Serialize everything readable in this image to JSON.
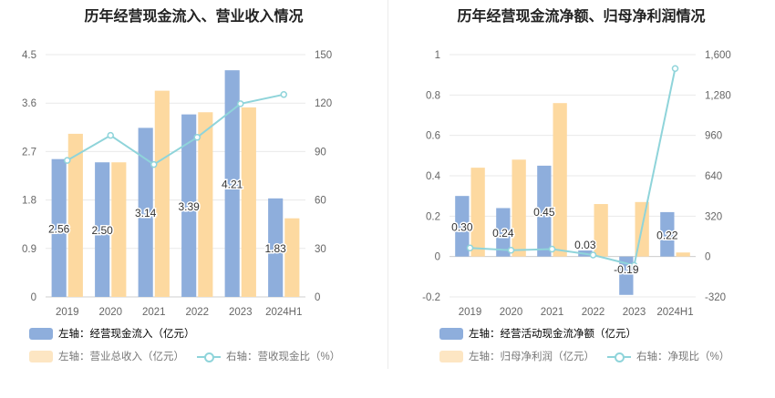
{
  "chart_data": [
    {
      "type": "bar",
      "title": "历年经营现金流入、营业收入情况",
      "categories": [
        "2019",
        "2020",
        "2021",
        "2022",
        "2023",
        "2024H1"
      ],
      "left_axis": {
        "ylim": [
          0,
          4.5
        ],
        "ticks": [
          "0",
          "0.9",
          "1.8",
          "2.7",
          "3.6",
          "4.5"
        ]
      },
      "right_axis": {
        "ylim": [
          0,
          150
        ],
        "ticks": [
          "0",
          "30",
          "60",
          "90",
          "120",
          "150"
        ]
      },
      "series": [
        {
          "name": "左轴：经营现金流入（亿元）",
          "axis": "left",
          "type": "bar",
          "color": "#8eaedc",
          "values": [
            2.56,
            2.5,
            3.14,
            3.39,
            4.21,
            1.83
          ],
          "labels": [
            "2.56",
            "2.50",
            "3.14",
            "3.39",
            "4.21",
            "1.83"
          ]
        },
        {
          "name": "左轴：营业总收入（亿元）",
          "axis": "left",
          "type": "bar",
          "color": "#fdd9a0",
          "values": [
            3.03,
            2.5,
            3.83,
            3.43,
            3.52,
            1.46
          ]
        },
        {
          "name": "右轴：营收现金比（%）",
          "axis": "right",
          "type": "line",
          "color": "#8fd4da",
          "values": [
            84.5,
            100,
            82,
            98.8,
            119.6,
            125.3
          ]
        }
      ]
    },
    {
      "type": "bar",
      "title": "历年经营现金流净额、归母净利润情况",
      "categories": [
        "2019",
        "2020",
        "2021",
        "2022",
        "2023",
        "2024H1"
      ],
      "left_axis": {
        "ylim": [
          -0.2,
          1
        ],
        "ticks": [
          "-0.2",
          "0",
          "0.2",
          "0.4",
          "0.6",
          "0.8",
          "1"
        ]
      },
      "right_axis": {
        "ylim": [
          -320,
          1600
        ],
        "ticks": [
          "-320",
          "0",
          "320",
          "640",
          "960",
          "1,280",
          "1,600"
        ]
      },
      "series": [
        {
          "name": "左轴：经营活动现金流净额（亿元）",
          "axis": "left",
          "type": "bar",
          "color": "#8eaedc",
          "values": [
            0.3,
            0.24,
            0.45,
            0.03,
            -0.19,
            0.22
          ],
          "labels": [
            "0.30",
            "0.24",
            "0.45",
            "0.03",
            "-0.19",
            "0.22"
          ]
        },
        {
          "name": "左轴：归母净利润（亿元）",
          "axis": "left",
          "type": "bar",
          "color": "#fdd9a0",
          "values": [
            0.44,
            0.48,
            0.76,
            0.26,
            0.27,
            0.02
          ]
        },
        {
          "name": "右轴：净现比（%）",
          "axis": "right",
          "type": "line",
          "color": "#8fd4da",
          "values": [
            68,
            50,
            59,
            12,
            -70,
            1490
          ]
        }
      ]
    }
  ]
}
